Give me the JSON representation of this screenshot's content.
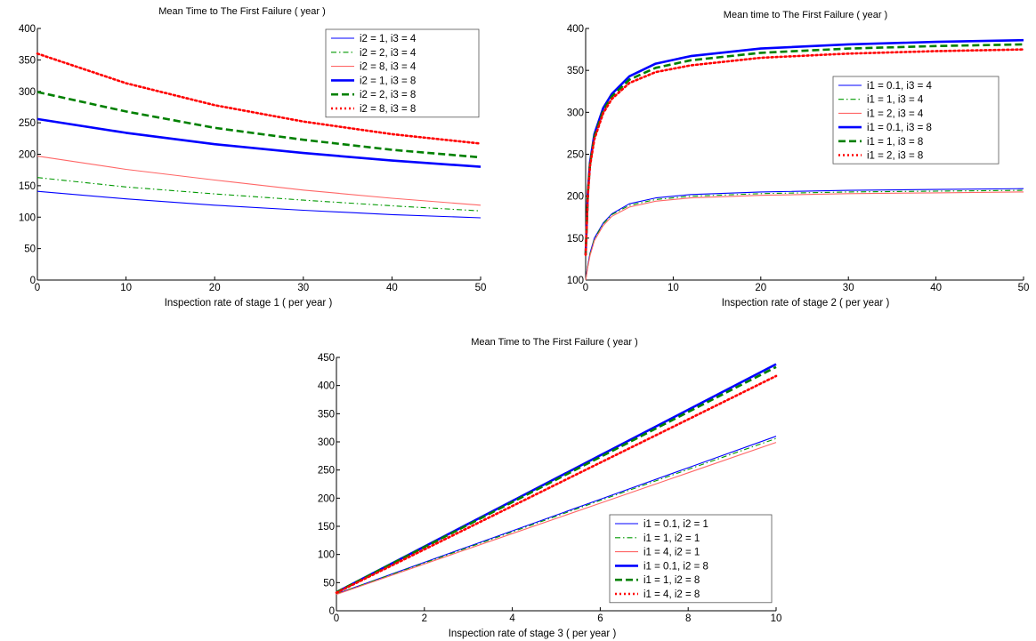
{
  "chart_data": [
    {
      "type": "line",
      "title": "Mean Time to The First Failure ( year )",
      "xlabel": "Inspection rate of stage 1 ( per year )",
      "ylabel": "",
      "xlim": [
        0,
        50
      ],
      "ylim": [
        0,
        400
      ],
      "xticks": [
        0,
        10,
        20,
        30,
        40,
        50
      ],
      "yticks": [
        0,
        50,
        100,
        150,
        200,
        250,
        300,
        350,
        400
      ],
      "legend": "top-right",
      "series": [
        {
          "name": "i2 = 1, i3 = 4",
          "color": "#0000ff",
          "style": "solid",
          "width": "thin",
          "x": [
            0,
            10,
            20,
            30,
            40,
            50
          ],
          "y": [
            141,
            129,
            119,
            111,
            104,
            99
          ]
        },
        {
          "name": "i2 = 2, i3 = 4",
          "color": "#009900",
          "style": "dashdot",
          "width": "thin",
          "x": [
            0,
            10,
            20,
            30,
            40,
            50
          ],
          "y": [
            163,
            148,
            137,
            127,
            118,
            110
          ]
        },
        {
          "name": "i2 = 8, i3 = 4",
          "color": "#ff6666",
          "style": "solid",
          "width": "thin",
          "x": [
            0,
            10,
            20,
            30,
            40,
            50
          ],
          "y": [
            197,
            176,
            159,
            143,
            130,
            119
          ]
        },
        {
          "name": "i2 = 1, i3 = 8",
          "color": "#0000ff",
          "style": "solid",
          "width": "thick",
          "x": [
            0,
            10,
            20,
            30,
            40,
            50
          ],
          "y": [
            256,
            234,
            216,
            202,
            190,
            180
          ]
        },
        {
          "name": "i2 = 2, i3 = 8",
          "color": "#008000",
          "style": "dashed",
          "width": "thick",
          "x": [
            0,
            10,
            20,
            30,
            40,
            50
          ],
          "y": [
            299,
            268,
            242,
            223,
            207,
            195
          ]
        },
        {
          "name": "i2 = 8, i3 = 8",
          "color": "#ff0000",
          "style": "dotted",
          "width": "thick",
          "x": [
            0,
            10,
            20,
            30,
            40,
            50
          ],
          "y": [
            360,
            313,
            278,
            252,
            232,
            217
          ]
        }
      ]
    },
    {
      "type": "line",
      "title": "Mean time to The First Failure ( year )",
      "xlabel": "Inspection rate of stage 2 ( per year )",
      "ylabel": "",
      "xlim": [
        0,
        50
      ],
      "ylim": [
        100,
        400
      ],
      "xticks": [
        0,
        10,
        20,
        30,
        40,
        50
      ],
      "yticks": [
        100,
        150,
        200,
        250,
        300,
        350,
        400
      ],
      "legend": "right",
      "series": [
        {
          "name": "i1 = 0.1, i3 = 4",
          "color": "#0000ff",
          "style": "solid",
          "width": "thin",
          "x": [
            0,
            0.25,
            0.5,
            1,
            2,
            3,
            5,
            8,
            12,
            20,
            30,
            40,
            50
          ],
          "y": [
            100,
            118,
            132,
            150,
            168,
            179,
            191,
            198,
            202,
            205,
            207,
            208,
            209
          ]
        },
        {
          "name": "i1 = 1, i3 = 4",
          "color": "#009900",
          "style": "dashdot",
          "width": "thin",
          "x": [
            0,
            0.25,
            0.5,
            1,
            2,
            3,
            5,
            8,
            12,
            20,
            30,
            40,
            50
          ],
          "y": [
            100,
            117,
            131,
            149,
            167,
            178,
            189,
            196,
            200,
            203,
            205,
            206,
            207
          ]
        },
        {
          "name": "i1 = 2, i3 = 4",
          "color": "#ff6666",
          "style": "solid",
          "width": "thin",
          "x": [
            0,
            0.25,
            0.5,
            1,
            2,
            3,
            5,
            8,
            12,
            20,
            30,
            40,
            50
          ],
          "y": [
            100,
            116,
            129,
            147,
            165,
            176,
            187,
            194,
            198,
            201,
            203,
            204,
            205
          ]
        },
        {
          "name": "i1 = 0.1, i3 = 8",
          "color": "#0000ff",
          "style": "solid",
          "width": "thick",
          "x": [
            0,
            0.25,
            0.5,
            1,
            2,
            3,
            5,
            8,
            12,
            20,
            30,
            40,
            50
          ],
          "y": [
            130,
            205,
            240,
            274,
            305,
            322,
            343,
            358,
            367,
            376,
            381,
            384,
            386
          ]
        },
        {
          "name": "i1 = 1, i3 = 8",
          "color": "#008000",
          "style": "dashed",
          "width": "thick",
          "x": [
            0,
            0.25,
            0.5,
            1,
            2,
            3,
            5,
            8,
            12,
            20,
            30,
            40,
            50
          ],
          "y": [
            130,
            203,
            238,
            271,
            302,
            319,
            339,
            353,
            362,
            371,
            376,
            379,
            381
          ]
        },
        {
          "name": "i1 = 2, i3 = 8",
          "color": "#ff0000",
          "style": "dotted",
          "width": "thick",
          "x": [
            0,
            0.25,
            0.5,
            1,
            2,
            3,
            5,
            8,
            12,
            20,
            30,
            40,
            50
          ],
          "y": [
            130,
            201,
            236,
            268,
            299,
            316,
            335,
            348,
            356,
            365,
            370,
            373,
            375
          ]
        }
      ]
    },
    {
      "type": "line",
      "title": "Mean Time to The First Failure ( year )",
      "xlabel": "Inspection rate of stage 3 ( per year )",
      "ylabel": "",
      "xlim": [
        0,
        10
      ],
      "ylim": [
        0,
        450
      ],
      "xticks": [
        0,
        2,
        4,
        6,
        8,
        10
      ],
      "yticks": [
        0,
        50,
        100,
        150,
        200,
        250,
        300,
        350,
        400,
        450
      ],
      "legend": "bottom-right",
      "series": [
        {
          "name": "i1 = 0.1, i2 = 1",
          "color": "#0000ff",
          "style": "solid",
          "width": "thin",
          "x": [
            0,
            2,
            4,
            6,
            8,
            10
          ],
          "y": [
            30,
            86,
            142,
            198,
            254,
            310
          ]
        },
        {
          "name": "i1 = 1, i2 = 1",
          "color": "#009900",
          "style": "dashdot",
          "width": "thin",
          "x": [
            0,
            2,
            4,
            6,
            8,
            10
          ],
          "y": [
            30,
            85,
            140,
            196,
            251,
            306
          ]
        },
        {
          "name": "i1 = 4, i2 = 1",
          "color": "#ff6666",
          "style": "solid",
          "width": "thin",
          "x": [
            0,
            2,
            4,
            6,
            8,
            10
          ],
          "y": [
            29,
            83,
            137,
            191,
            245,
            299
          ]
        },
        {
          "name": "i1 = 0.1, i2 = 8",
          "color": "#0000ff",
          "style": "solid",
          "width": "thick",
          "x": [
            0,
            2,
            4,
            6,
            8,
            10
          ],
          "y": [
            33,
            114,
            195,
            276,
            357,
            438
          ]
        },
        {
          "name": "i1 = 1, i2 = 8",
          "color": "#008000",
          "style": "dashed",
          "width": "thick",
          "x": [
            0,
            2,
            4,
            6,
            8,
            10
          ],
          "y": [
            33,
            113,
            193,
            273,
            353,
            433
          ]
        },
        {
          "name": "i1 = 4, i2 = 8",
          "color": "#ff0000",
          "style": "dotted",
          "width": "thick",
          "x": [
            0,
            2,
            4,
            6,
            8,
            10
          ],
          "y": [
            32,
            109,
            186,
            263,
            340,
            417
          ]
        }
      ]
    }
  ]
}
